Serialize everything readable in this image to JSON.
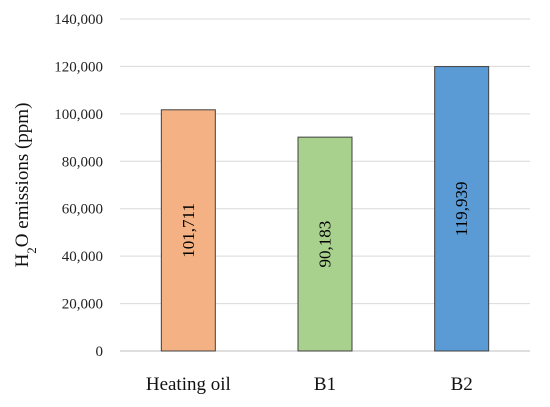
{
  "chart_data": {
    "type": "bar",
    "categories": [
      "Heating oil",
      "B1",
      "B2"
    ],
    "values": [
      101711,
      90183,
      119939
    ],
    "data_labels": [
      "101,711",
      "90,183",
      "119,939"
    ],
    "bar_colors": [
      "#f4b183",
      "#a9d18e",
      "#5b9bd5"
    ],
    "ylabel_parts": {
      "main": "H",
      "sub": "2",
      "rest": "O emissions (ppm)"
    },
    "ylim": [
      0,
      140000
    ],
    "yticks": [
      0,
      20000,
      40000,
      60000,
      80000,
      100000,
      120000,
      140000
    ],
    "ytick_labels": [
      "0",
      "20,000",
      "40,000",
      "60,000",
      "80,000",
      "100,000",
      "120,000",
      "140,000"
    ],
    "grid": true,
    "legend": "none"
  }
}
